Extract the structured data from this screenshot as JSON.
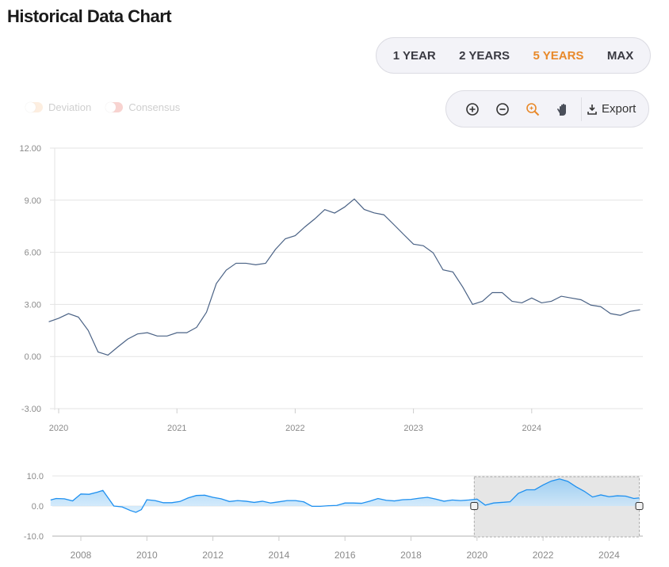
{
  "header": {
    "title": "Historical Data Chart"
  },
  "ranges": {
    "items": [
      "1 YEAR",
      "2 YEARS",
      "5 YEARS",
      "MAX"
    ],
    "active": "5 YEARS"
  },
  "legend": {
    "items": [
      {
        "label": "Deviation",
        "color": "#fdeee0"
      },
      {
        "label": "Consensus",
        "color": "#f8d3d0"
      }
    ]
  },
  "toolbar": {
    "icons": [
      "zoom-in-icon",
      "zoom-out-icon",
      "magnify-zoom-icon",
      "pan-hand-icon"
    ],
    "export_label": "Export"
  },
  "colors": {
    "line": "#4a6285",
    "accent": "#e8892a",
    "navigator": "#1e90f0"
  },
  "chart_data": [
    {
      "type": "line",
      "ylim": [
        -3,
        12
      ],
      "yticks": [
        "12.00",
        "9.00",
        "6.00",
        "3.00",
        "0.00",
        "-3.00"
      ],
      "xticks": [
        "2020",
        "2021",
        "2022",
        "2023",
        "2024"
      ],
      "grid": true,
      "x": [
        "2019-12",
        "2020-01",
        "2020-02",
        "2020-03",
        "2020-04",
        "2020-05",
        "2020-06",
        "2020-07",
        "2020-08",
        "2020-09",
        "2020-10",
        "2020-11",
        "2020-12",
        "2021-01",
        "2021-02",
        "2021-03",
        "2021-04",
        "2021-05",
        "2021-06",
        "2021-07",
        "2021-08",
        "2021-09",
        "2021-10",
        "2021-11",
        "2021-12",
        "2022-01",
        "2022-02",
        "2022-03",
        "2022-04",
        "2022-05",
        "2022-06",
        "2022-07",
        "2022-08",
        "2022-09",
        "2022-10",
        "2022-11",
        "2022-12",
        "2023-01",
        "2023-02",
        "2023-03",
        "2023-04",
        "2023-05",
        "2023-06",
        "2023-07",
        "2023-08",
        "2023-09",
        "2023-10",
        "2023-11",
        "2023-12",
        "2024-01",
        "2024-02",
        "2024-03",
        "2024-04",
        "2024-05",
        "2024-06",
        "2024-07",
        "2024-08",
        "2024-09",
        "2024-10",
        "2024-11",
        "2024-12"
      ],
      "values": [
        2.0,
        2.2,
        2.47,
        2.27,
        1.5,
        0.26,
        0.08,
        0.55,
        1.0,
        1.3,
        1.37,
        1.18,
        1.18,
        1.37,
        1.37,
        1.68,
        2.55,
        4.2,
        4.97,
        5.37,
        5.37,
        5.28,
        5.37,
        6.17,
        6.78,
        6.96,
        7.47,
        7.93,
        8.46,
        8.26,
        8.6,
        9.07,
        8.47,
        8.27,
        8.16,
        7.6,
        7.03,
        6.47,
        6.38,
        5.97,
        4.99,
        4.87,
        4.0,
        3.0,
        3.18,
        3.68,
        3.68,
        3.18,
        3.09,
        3.37,
        3.09,
        3.18,
        3.47,
        3.37,
        3.27,
        2.96,
        2.87,
        2.47,
        2.37,
        2.6,
        2.69
      ]
    },
    {
      "type": "area",
      "role": "navigator",
      "ylim": [
        -10,
        10
      ],
      "yticks": [
        "10.0",
        "0.0",
        "-10.0"
      ],
      "xticks": [
        "2008",
        "2010",
        "2012",
        "2014",
        "2016",
        "2018",
        "2020",
        "2022",
        "2024"
      ],
      "selection": [
        "2019-12",
        "2024-12"
      ],
      "x": [
        "2007-02",
        "2007-04",
        "2007-07",
        "2007-10",
        "2008-01",
        "2008-04",
        "2008-07",
        "2008-09",
        "2009-01",
        "2009-04",
        "2009-07",
        "2009-09",
        "2009-11",
        "2010-01",
        "2010-04",
        "2010-07",
        "2010-10",
        "2011-01",
        "2011-04",
        "2011-07",
        "2011-10",
        "2012-01",
        "2012-04",
        "2012-07",
        "2012-10",
        "2013-01",
        "2013-04",
        "2013-07",
        "2013-10",
        "2014-01",
        "2014-04",
        "2014-07",
        "2014-10",
        "2015-01",
        "2015-04",
        "2015-07",
        "2015-10",
        "2016-01",
        "2016-04",
        "2016-07",
        "2016-10",
        "2017-01",
        "2017-04",
        "2017-07",
        "2017-10",
        "2018-01",
        "2018-04",
        "2018-07",
        "2018-10",
        "2019-01",
        "2019-04",
        "2019-07",
        "2019-10",
        "2020-01",
        "2020-04",
        "2020-07",
        "2020-10",
        "2021-01",
        "2021-04",
        "2021-07",
        "2021-10",
        "2022-01",
        "2022-04",
        "2022-07",
        "2022-10",
        "2023-01",
        "2023-04",
        "2023-07",
        "2023-10",
        "2024-01",
        "2024-04",
        "2024-07",
        "2024-10",
        "2024-12"
      ],
      "values": [
        2.0,
        2.5,
        2.4,
        1.7,
        4.0,
        3.9,
        4.6,
        5.2,
        0.0,
        -0.3,
        -1.5,
        -2.1,
        -1.2,
        2.1,
        1.8,
        1.1,
        1.1,
        1.5,
        2.7,
        3.5,
        3.6,
        2.9,
        2.4,
        1.5,
        1.8,
        1.6,
        1.2,
        1.6,
        1.0,
        1.4,
        1.8,
        1.8,
        1.4,
        -0.1,
        -0.1,
        0.1,
        0.2,
        1.0,
        1.0,
        0.9,
        1.6,
        2.5,
        1.9,
        1.7,
        2.1,
        2.2,
        2.6,
        2.9,
        2.3,
        1.6,
        2.0,
        1.8,
        2.0,
        2.3,
        0.3,
        1.0,
        1.2,
        1.4,
        4.2,
        5.4,
        5.4,
        7.0,
        8.3,
        9.0,
        8.2,
        6.4,
        4.9,
        3.0,
        3.7,
        3.1,
        3.4,
        3.3,
        2.5,
        2.7
      ]
    }
  ]
}
